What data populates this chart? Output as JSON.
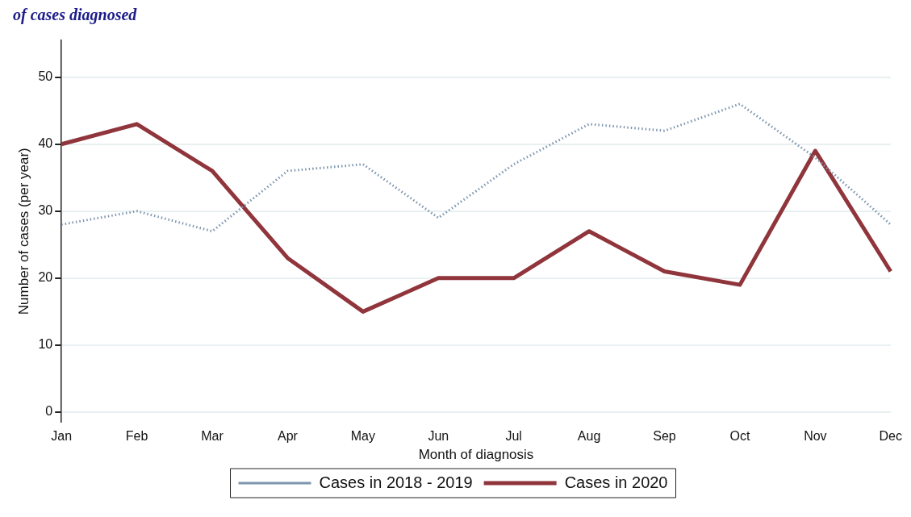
{
  "chart_data": {
    "type": "line",
    "title": "of cases diagnosed",
    "categories": [
      "Jan",
      "Feb",
      "Mar",
      "Apr",
      "May",
      "Jun",
      "Jul",
      "Aug",
      "Sep",
      "Oct",
      "Nov",
      "Dec"
    ],
    "series": [
      {
        "name": "Cases in 2018 - 2019",
        "color": "#7d95ae",
        "line_style": "dotted",
        "values": [
          28,
          30,
          27,
          36,
          37,
          29,
          37,
          43,
          42,
          46,
          38,
          28
        ]
      },
      {
        "name": "Cases in 2020",
        "color": "#90353b",
        "line_style": "solid",
        "values": [
          40,
          43,
          36,
          23,
          15,
          20,
          20,
          27,
          21,
          19,
          39,
          21
        ]
      }
    ],
    "xlabel": "Month of diagnosis",
    "ylabel": "Number of cases (per year)",
    "ylim": [
      -1.5,
      55.5
    ],
    "yticks": [
      0,
      10,
      20,
      30,
      40,
      50
    ],
    "grid": "y",
    "legend": "bottom",
    "marker": "none"
  }
}
